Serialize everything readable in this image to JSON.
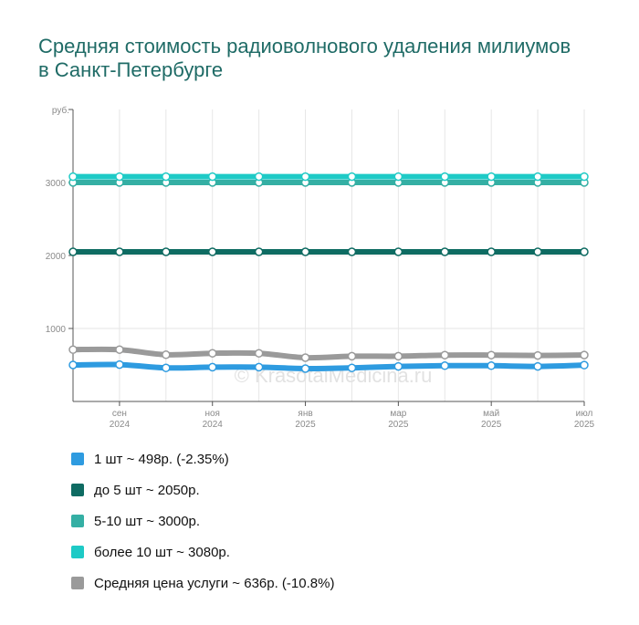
{
  "title": "Средняя стоимость радиоволнового удаления милиумов в Санкт-Петербурге",
  "watermark": "© KrasotaiMedicina.ru",
  "chart_data": {
    "type": "line",
    "title": "Средняя стоимость радиоволнового удаления милиумов в Санкт-Петербурге",
    "ylabel": "руб.",
    "ylim": [
      0,
      4000
    ],
    "y_ticks": [
      "1000",
      "2000",
      "3000"
    ],
    "x_ticks": [
      {
        "month": "сен",
        "year": "2024"
      },
      {
        "month": "ноя",
        "year": "2024"
      },
      {
        "month": "янв",
        "year": "2025"
      },
      {
        "month": "мар",
        "year": "2025"
      },
      {
        "month": "май",
        "year": "2025"
      },
      {
        "month": "июл",
        "year": "2025"
      }
    ],
    "grid": true,
    "legend_position": "bottom",
    "series": [
      {
        "name": "1 шт ~ 498р. (-2.35%)",
        "color": "#2e9be0",
        "values": [
          500,
          505,
          460,
          470,
          470,
          450,
          460,
          480,
          490,
          490,
          480,
          498
        ]
      },
      {
        "name": "до 5 шт ~ 2050р.",
        "color": "#0e6b62",
        "values": [
          2050,
          2050,
          2050,
          2050,
          2050,
          2050,
          2050,
          2050,
          2050,
          2050,
          2050,
          2050
        ]
      },
      {
        "name": "5-10 шт ~ 3000р.",
        "color": "#34afa4",
        "values": [
          3000,
          3000,
          3000,
          3000,
          3000,
          3000,
          3000,
          3000,
          3000,
          3000,
          3000,
          3000
        ]
      },
      {
        "name": "более 10 шт ~ 3080р.",
        "color": "#1ecac6",
        "values": [
          3080,
          3080,
          3080,
          3080,
          3080,
          3080,
          3080,
          3080,
          3080,
          3080,
          3080,
          3080
        ]
      },
      {
        "name": "Средняя цена услуги ~ 636р. (-10.8%)",
        "color": "#9a9a9a",
        "values": [
          710,
          710,
          640,
          660,
          660,
          600,
          620,
          620,
          635,
          635,
          630,
          636
        ]
      }
    ]
  }
}
